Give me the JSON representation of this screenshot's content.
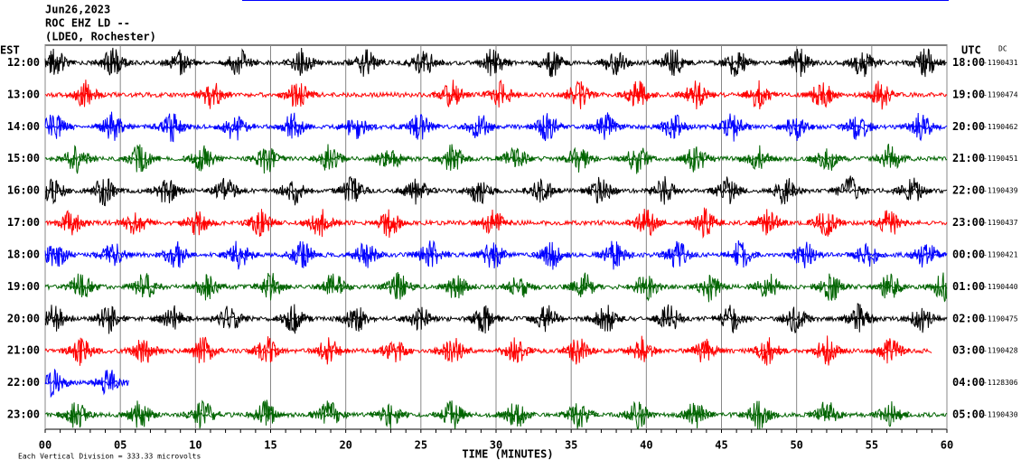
{
  "chart_data": {
    "type": "helicorder",
    "title": "Jun26,2023",
    "subtitle": "ROC EHZ LD --",
    "station": "(LDEO, Rochester)",
    "left_axis_label": "EST",
    "right_axis_label": "UTC",
    "right_note": "DC",
    "xlabel": "TIME (MINUTES)",
    "footnote": "Each Vertical Division =  333.33 microvolts",
    "xlim": [
      0,
      60
    ],
    "xticks": [
      {
        "value": 0,
        "label": "00"
      },
      {
        "value": 5,
        "label": "05"
      },
      10,
      15,
      20,
      25,
      30,
      35,
      40,
      45,
      50,
      55,
      60
    ],
    "grid": true,
    "rows": [
      {
        "label": "12:00",
        "utc": "18:00",
        "level": "-1190431",
        "color": "#000000",
        "end": 60,
        "bursts": [
          0.7,
          4.5,
          9,
          12.9,
          17.1,
          21.3,
          25.2,
          29.8,
          33.7,
          37.9,
          41.8,
          46,
          50.2,
          54.4,
          58.6
        ]
      },
      {
        "label": "13:00",
        "utc": "19:00",
        "level": "-1190474",
        "color": "#ff0000",
        "end": 60,
        "bursts": [
          2.7,
          11.1,
          16.8,
          27.1,
          30.4,
          35.5,
          39.4,
          43.3,
          47.5,
          51.7,
          55.6
        ]
      },
      {
        "label": "14:00",
        "utc": "20:00",
        "level": "-1190462",
        "color": "#0000ff",
        "end": 60,
        "bursts": [
          0.6,
          4.5,
          8.4,
          12.6,
          16.5,
          20.7,
          24.9,
          28.9,
          33.4,
          37.3,
          41.8,
          45.7,
          49.9,
          54.1,
          58.3
        ]
      },
      {
        "label": "15:00",
        "utc": "21:00",
        "level": "-1190451",
        "color": "#006400",
        "end": 60,
        "bursts": [
          2.1,
          6.3,
          10.5,
          14.7,
          18.9,
          22.9,
          27.1,
          31.3,
          35.5,
          39.4,
          43.3,
          47.5,
          52,
          56.2
        ]
      },
      {
        "label": "16:00",
        "utc": "22:00",
        "level": "-1190439",
        "color": "#000000",
        "end": 60,
        "bursts": [
          0.5,
          3.9,
          8.1,
          12,
          16.5,
          20.4,
          24.7,
          28.9,
          33.1,
          37,
          41.2,
          45.4,
          49.3,
          53.5,
          57.7
        ]
      },
      {
        "label": "17:00",
        "utc": "23:00",
        "level": "-1190437",
        "color": "#ff0000",
        "end": 60,
        "bursts": [
          1.8,
          6,
          10.2,
          14.4,
          18.3,
          22.9,
          29.8,
          40,
          43.9,
          48.1,
          52,
          56.2
        ]
      },
      {
        "label": "18:00",
        "utc": "00:00",
        "level": "-1190421",
        "color": "#0000ff",
        "end": 60,
        "bursts": [
          0.7,
          4.5,
          8.7,
          12.9,
          17.1,
          21.3,
          25.6,
          29.8,
          33.7,
          37.9,
          42.1,
          46.3,
          50.5,
          54.7,
          58.6
        ]
      },
      {
        "label": "19:00",
        "utc": "01:00",
        "level": "-1190440",
        "color": "#006400",
        "end": 60,
        "bursts": [
          2.4,
          6.6,
          10.8,
          15,
          19.2,
          23.5,
          27.4,
          31.6,
          35.8,
          40,
          44.2,
          48.1,
          52.3,
          56.2,
          59.8
        ]
      },
      {
        "label": "20:00",
        "utc": "02:00",
        "level": "-1190475",
        "color": "#000000",
        "end": 60,
        "bursts": [
          0.6,
          4.2,
          8.4,
          12.3,
          16.5,
          20.7,
          24.9,
          29.2,
          33.4,
          37.3,
          41.5,
          45.7,
          49.9,
          54.1,
          58.3
        ]
      },
      {
        "label": "21:00",
        "utc": "03:00",
        "level": "-1190428",
        "color": "#ff0000",
        "end": 59,
        "bursts": [
          2.4,
          6.6,
          10.5,
          14.7,
          18.9,
          23.2,
          27.1,
          31.3,
          35.5,
          39.7,
          43.9,
          48.1,
          52,
          56.2
        ]
      },
      {
        "label": "22:00",
        "utc": "04:00",
        "level": "-1128306",
        "color": "#0000ff",
        "end": 5,
        "bursts": [
          0.6,
          4.2
        ]
      },
      {
        "label": "23:00",
        "utc": "05:00",
        "level": "-1190430",
        "color": "#006400",
        "end": 60,
        "bursts": [
          2.1,
          6.3,
          10.5,
          14.7,
          18.9,
          22.9,
          27.1,
          31.3,
          35.5,
          39.4,
          43.3,
          47.5,
          52,
          56.2
        ]
      }
    ]
  }
}
